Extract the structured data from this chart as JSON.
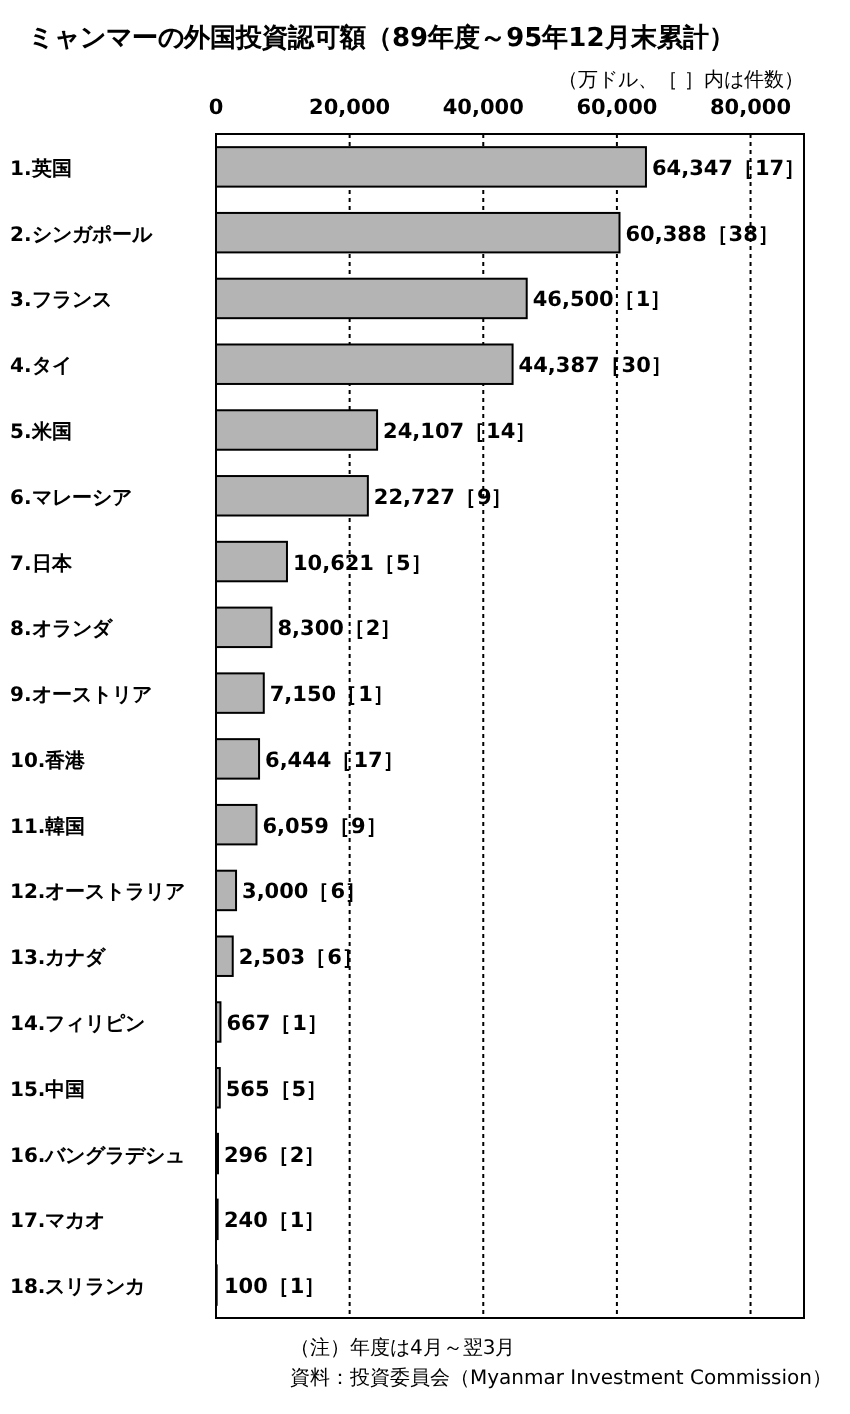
{
  "chart_data": {
    "type": "bar",
    "orientation": "horizontal",
    "title": "ミャンマーの外国投資認可額（89年度～95年12月末累計）",
    "xlabel": "（万ドル、［ ］内は件数）",
    "categories": [
      "1.英国",
      "2.シンガポール",
      "3.フランス",
      "4.タイ",
      "5.米国",
      "6.マレーシア",
      "7.日本",
      "8.オランダ",
      "9.オーストリア",
      "10.香港",
      "11.韓国",
      "12.オーストラリア",
      "13.カナダ",
      "14.フィリピン",
      "15.中国",
      "16.バングラデシュ",
      "17.マカオ",
      "18.スリランカ"
    ],
    "values": [
      64347,
      60388,
      46500,
      44387,
      24107,
      22727,
      10621,
      8300,
      7150,
      6444,
      6059,
      3000,
      2503,
      667,
      565,
      296,
      240,
      100
    ],
    "value_labels": [
      "64,347［17］",
      "60,388［38］",
      "46,500［1］",
      "44,387［30］",
      "24,107［14］",
      "22,727［9］",
      "10,621［5］",
      "8,300［2］",
      "7,150［1］",
      "6,444［17］",
      "6,059［9］",
      "3,000［6］",
      "2,503［6］",
      "667［1］",
      "565［5］",
      "296［2］",
      "240［1］",
      "100［1］"
    ],
    "color": "#b4b4b4",
    "xlim": [
      0,
      88000
    ],
    "xticks": [
      0,
      {
        "value": 20000,
        "label": "20,000"
      },
      {
        "value": 40000,
        "label": "40,000"
      },
      {
        "value": 60000,
        "label": "60,000"
      },
      {
        "value": 80000,
        "label": "80,000"
      }
    ],
    "grid": "x",
    "annotations": [
      "（注）年度は4月～翌3月",
      "資料：投資委員会（Myanmar Investment Commission）"
    ]
  }
}
